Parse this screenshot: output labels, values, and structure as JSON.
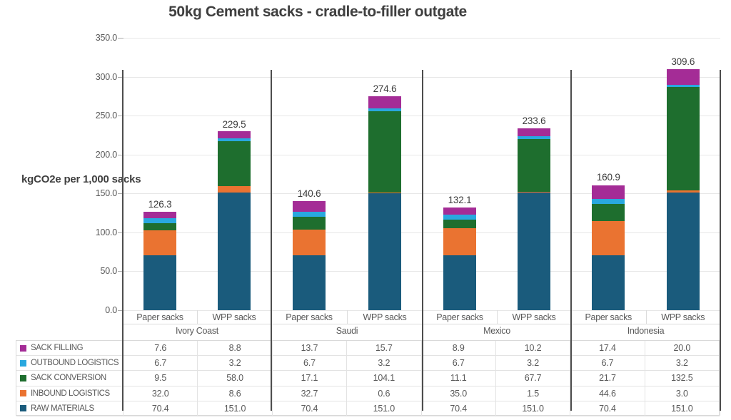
{
  "title": "50kg Cement sacks - cradle-to-filler outgate",
  "y_axis": {
    "label": "kgCO2e per 1,000 sacks",
    "tick_labels": [
      "0.0",
      "50.0",
      "100.0",
      "150.0",
      "200.0",
      "250.0",
      "300.0",
      "350.0"
    ],
    "min": 0,
    "max": 350,
    "tick_step": 50
  },
  "chart_data": {
    "type": "bar",
    "stacked": true,
    "title": "50kg Cement sacks - cradle-to-filler outgate",
    "xlabel": "",
    "ylabel": "kgCO2e per 1,000 sacks",
    "ylim": [
      0,
      350
    ],
    "grid": true,
    "legend_position": "table-left",
    "groups": [
      "Ivory Coast",
      "Saudi",
      "Mexico",
      "Indonesia"
    ],
    "bar_labels": [
      "Paper sacks",
      "WPP sacks",
      "Paper sacks",
      "WPP sacks",
      "Paper sacks",
      "WPP sacks",
      "Paper sacks",
      "WPP sacks"
    ],
    "totals": [
      126.3,
      229.5,
      140.6,
      274.6,
      132.1,
      233.6,
      160.9,
      309.6
    ],
    "series": [
      {
        "name": "SACK FILLING",
        "color": "#a42c96",
        "values": [
          7.6,
          8.8,
          13.7,
          15.7,
          8.9,
          10.2,
          17.4,
          20.0
        ]
      },
      {
        "name": "OUTBOUND LOGISTICS",
        "color": "#29a8df",
        "values": [
          6.7,
          3.2,
          6.7,
          3.2,
          6.7,
          3.2,
          6.7,
          3.2
        ]
      },
      {
        "name": "SACK CONVERSION",
        "color": "#1e6e2e",
        "values": [
          9.5,
          58.0,
          17.1,
          104.1,
          11.1,
          67.7,
          21.7,
          132.5
        ]
      },
      {
        "name": "INBOUND LOGISTICS",
        "color": "#ea7331",
        "values": [
          32.0,
          8.6,
          32.7,
          0.6,
          35.0,
          1.5,
          44.6,
          3.0
        ]
      },
      {
        "name": "RAW MATERIALS",
        "color": "#1a5b7c",
        "values": [
          70.4,
          151.0,
          70.4,
          151.0,
          70.4,
          151.0,
          70.4,
          151.0
        ]
      }
    ],
    "colors": {
      "gridline": "#e7e7e7",
      "divider": "#4d4d4d",
      "axis_text": "#595959",
      "title_text": "#3f3f3f"
    }
  }
}
